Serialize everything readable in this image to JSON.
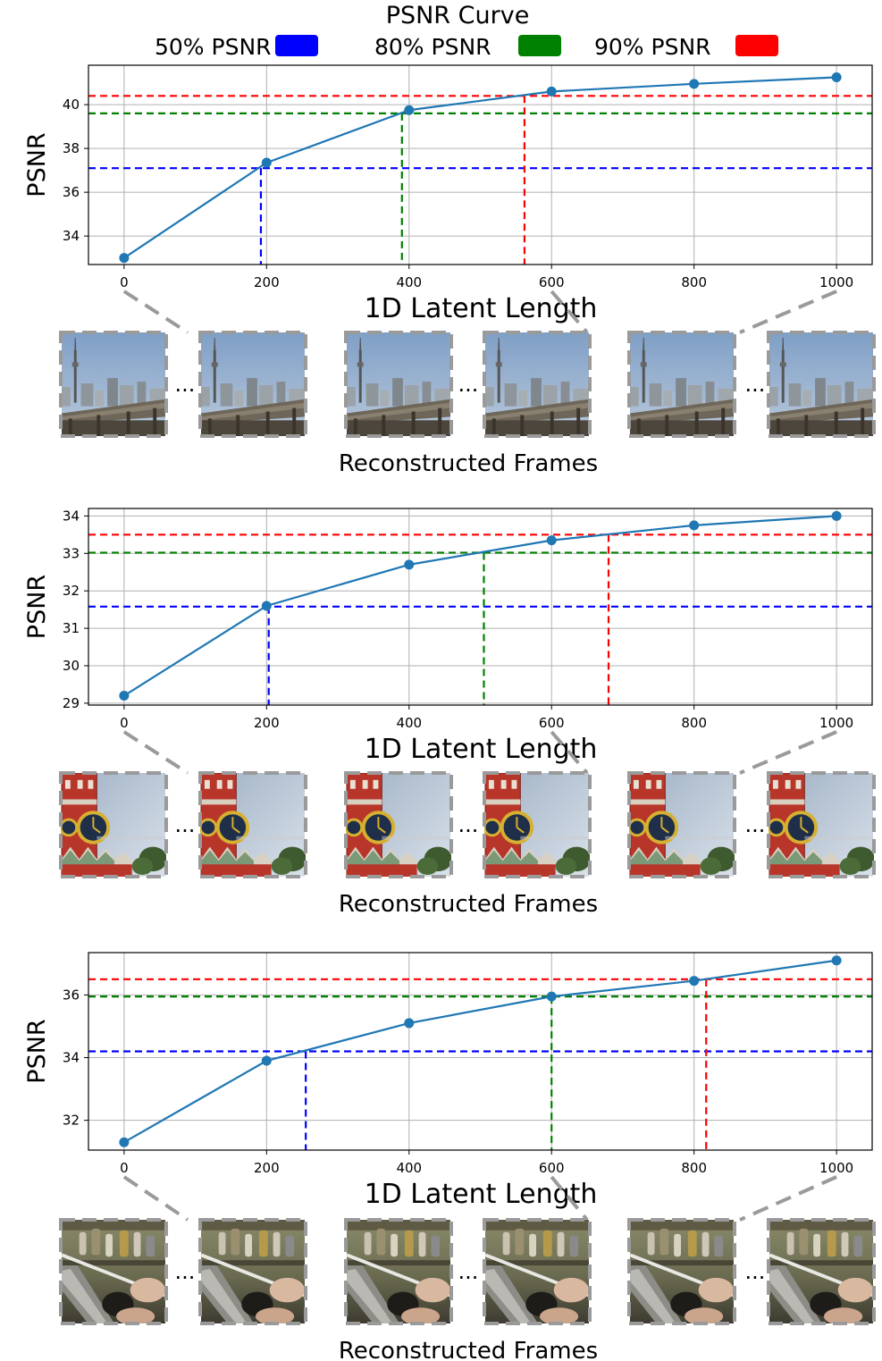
{
  "title": "PSNR Curve",
  "legend": [
    {
      "label": "50% PSNR",
      "color": "#0000ff"
    },
    {
      "label": "80% PSNR",
      "color": "#008000"
    },
    {
      "label": "90% PSNR",
      "color": "#ff0000"
    }
  ],
  "line_color": "#1f77b4",
  "grid_color": "#b0b0b0",
  "frames_caption": "Reconstructed Frames",
  "ellipsis": "...",
  "chart_data": [
    {
      "type": "line",
      "xlabel": "1D Latent Length",
      "ylabel": "PSNR",
      "x": [
        0,
        200,
        400,
        600,
        800,
        1000
      ],
      "series": [
        {
          "values": [
            33.0,
            37.35,
            39.75,
            40.6,
            40.95,
            41.25
          ]
        }
      ],
      "xticks": [
        "0",
        "200",
        "400",
        "600",
        "800",
        "1000"
      ],
      "yticks": [
        "34",
        "36",
        "38",
        "40"
      ],
      "xlim": [
        -50,
        1050
      ],
      "ylim": [
        32.7,
        41.8
      ],
      "grid": true,
      "thresholds": [
        {
          "label": "50% PSNR",
          "psnr": 37.1,
          "latent_length": 192,
          "color": "#0000ff"
        },
        {
          "label": "80% PSNR",
          "psnr": 39.6,
          "latent_length": 390,
          "color": "#008000"
        },
        {
          "label": "90% PSNR",
          "psnr": 40.4,
          "latent_length": 562,
          "color": "#ff0000"
        }
      ],
      "frame_scene": "city"
    },
    {
      "type": "line",
      "xlabel": "1D Latent Length",
      "ylabel": "PSNR",
      "x": [
        0,
        200,
        400,
        600,
        800,
        1000
      ],
      "series": [
        {
          "values": [
            29.2,
            31.6,
            32.7,
            33.35,
            33.75,
            34.0
          ]
        }
      ],
      "xticks": [
        "0",
        "200",
        "400",
        "600",
        "800",
        "1000"
      ],
      "yticks": [
        "29",
        "30",
        "31",
        "32",
        "33",
        "34"
      ],
      "xlim": [
        -50,
        1050
      ],
      "ylim": [
        28.95,
        34.2
      ],
      "grid": true,
      "thresholds": [
        {
          "label": "50% PSNR",
          "psnr": 31.58,
          "latent_length": 203,
          "color": "#0000ff"
        },
        {
          "label": "80% PSNR",
          "psnr": 33.02,
          "latent_length": 505,
          "color": "#008000"
        },
        {
          "label": "90% PSNR",
          "psnr": 33.5,
          "latent_length": 680,
          "color": "#ff0000"
        }
      ],
      "frame_scene": "tower"
    },
    {
      "type": "line",
      "xlabel": "1D Latent Length",
      "ylabel": "PSNR",
      "x": [
        0,
        200,
        400,
        600,
        800,
        1000
      ],
      "series": [
        {
          "values": [
            31.3,
            33.9,
            35.1,
            35.95,
            36.45,
            37.1
          ]
        }
      ],
      "xticks": [
        "0",
        "200",
        "400",
        "600",
        "800",
        "1000"
      ],
      "yticks": [
        "32",
        "34",
        "36"
      ],
      "xlim": [
        -50,
        1050
      ],
      "ylim": [
        31.05,
        37.35
      ],
      "grid": true,
      "thresholds": [
        {
          "label": "50% PSNR",
          "psnr": 34.2,
          "latent_length": 255,
          "color": "#0000ff"
        },
        {
          "label": "80% PSNR",
          "psnr": 35.95,
          "latent_length": 600,
          "color": "#008000"
        },
        {
          "label": "90% PSNR",
          "psnr": 36.5,
          "latent_length": 817,
          "color": "#ff0000"
        }
      ],
      "frame_scene": "hands"
    }
  ]
}
